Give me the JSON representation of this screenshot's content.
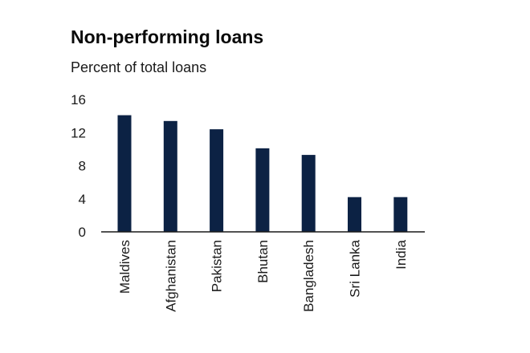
{
  "colors": {
    "bar": "#0c2244",
    "axis": "#1a1a1a",
    "text": "#1a1a1a"
  },
  "chart_data": {
    "type": "bar",
    "title": "Non-performing loans",
    "subtitle": "Percent of total loans",
    "xlabel": "",
    "ylabel": "",
    "categories": [
      "Maldives",
      "Afghanistan",
      "Pakistan",
      "Bhutan",
      "Bangladesh",
      "Sri Lanka",
      "India"
    ],
    "values": [
      14.1,
      13.4,
      12.4,
      10.1,
      9.3,
      4.2,
      4.2
    ],
    "ylim": [
      0,
      16
    ],
    "yticks": [
      "0",
      "4",
      "8",
      "12",
      "16"
    ],
    "grid": false,
    "legend": "none"
  }
}
